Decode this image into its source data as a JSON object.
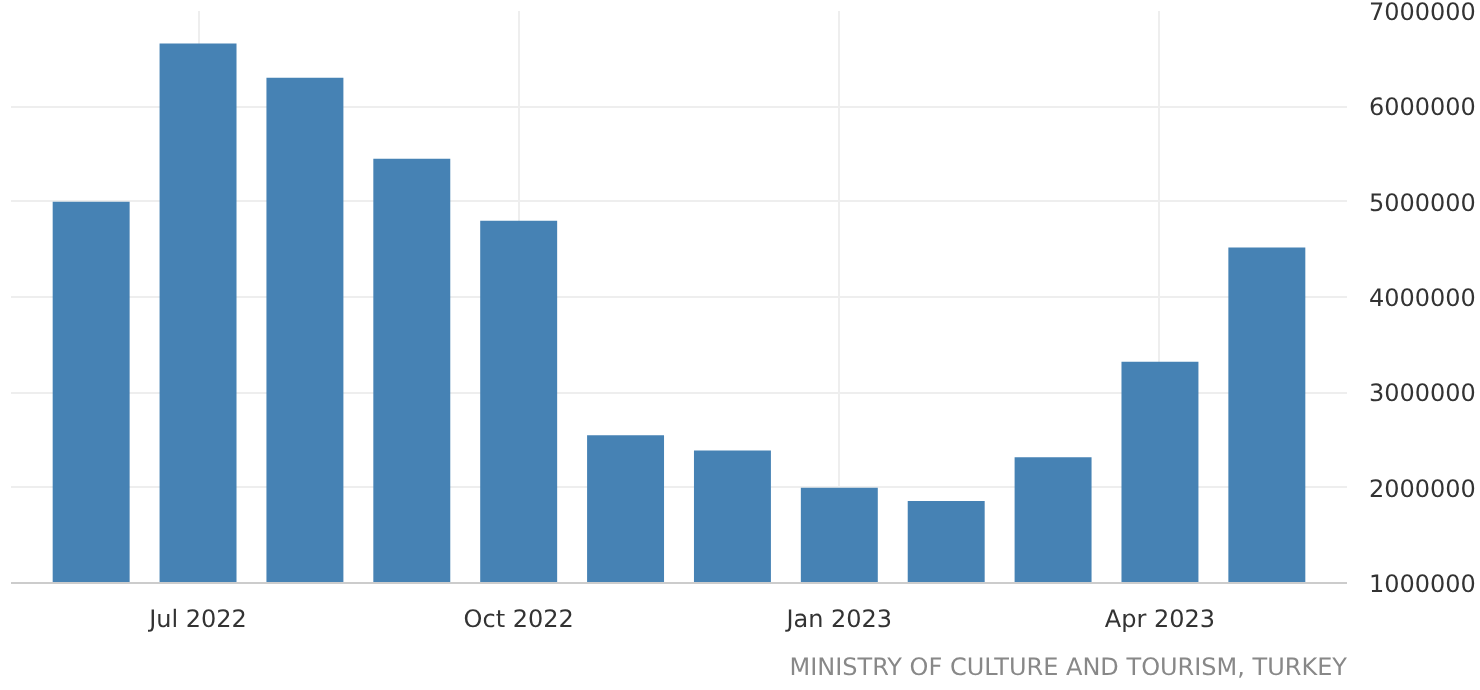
{
  "chart_data": {
    "type": "bar",
    "categories": [
      null,
      "Jul 2022",
      null,
      null,
      "Oct 2022",
      null,
      null,
      "Jan 2023",
      null,
      null,
      "Apr 2023",
      null
    ],
    "values": [
      5000000,
      6660000,
      6300000,
      5450000,
      4800000,
      2550000,
      2390000,
      2000000,
      1860000,
      2320000,
      3320000,
      4520000
    ],
    "color": "#4682b4",
    "ylim": [
      1000000,
      7000000
    ],
    "yticks": [
      1000000,
      2000000,
      3000000,
      4000000,
      5000000,
      6000000,
      7000000
    ],
    "grid": true,
    "annotations": [
      "MINISTRY OF CULTURE AND TOURISM, TURKEY"
    ]
  }
}
